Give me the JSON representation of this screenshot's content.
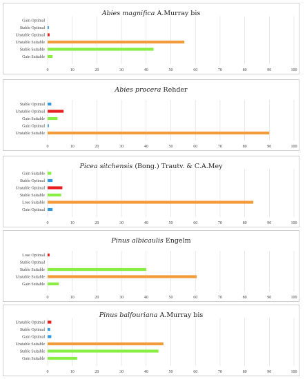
{
  "chart_data": [
    {
      "type": "bar",
      "orientation": "horizontal",
      "title_italic": "Abies magnifica",
      "title_rest": " A.Murray bis",
      "categories": [
        "Gain Optimal",
        "Stable Optimal",
        "Unstable Optimal",
        "Unstable Suitable",
        "Stable Suitable",
        "Gain Suitable"
      ],
      "values": [
        0,
        0.5,
        0.8,
        55.5,
        43,
        2
      ],
      "colors": [
        "#3399dd",
        "#3399dd",
        "#e62020",
        "#f39a3a",
        "#88ee44",
        "#88ee44"
      ],
      "xlim": [
        0,
        100
      ],
      "xticks": [
        "0",
        "10",
        "20",
        "30",
        "40",
        "50",
        "60",
        "70",
        "80",
        "90",
        "100"
      ],
      "grid": true
    },
    {
      "type": "bar",
      "orientation": "horizontal",
      "title_italic": "Abies procera",
      "title_rest": " Rehder",
      "categories": [
        "Stable Optimal",
        "Unstable Optimal",
        "Gain Suitable",
        "Gain Optimal",
        "Unstable Suitable"
      ],
      "values": [
        1.5,
        6.5,
        4,
        0.5,
        90
      ],
      "colors": [
        "#3399dd",
        "#e62020",
        "#88ee44",
        "#3399dd",
        "#f39a3a"
      ],
      "xlim": [
        0,
        100
      ],
      "xticks": [
        "0",
        "10",
        "20",
        "30",
        "40",
        "50",
        "60",
        "70",
        "80",
        "90",
        "100"
      ],
      "grid": true
    },
    {
      "type": "bar",
      "orientation": "horizontal",
      "title_italic": "Picea sitchensis",
      "title_rest": " (Bong.) Trautv. & C.A.Mey",
      "categories": [
        "Gain Suitable",
        "Stable Optimal",
        "Unstable Optimal",
        "Stable Suitable",
        "Lose Suitable",
        "Gain Optimal"
      ],
      "values": [
        1.5,
        2,
        6,
        5.5,
        83.5,
        2
      ],
      "colors": [
        "#88ee44",
        "#3399dd",
        "#e62020",
        "#88ee44",
        "#f39a3a",
        "#3399dd"
      ],
      "xlim": [
        0,
        100
      ],
      "xticks": [
        "0",
        "10",
        "20",
        "30",
        "40",
        "50",
        "60",
        "70",
        "80",
        "90",
        "100"
      ],
      "grid": true
    },
    {
      "type": "bar",
      "orientation": "horizontal",
      "title_italic": "Pinus albicaulis",
      "title_rest": " Engelm",
      "categories": [
        "Lose Optimal",
        "Stable Optimal",
        "Stable Suitable",
        "Unstable Suitable",
        "Gain Suitable"
      ],
      "values": [
        0.8,
        0,
        40,
        60.5,
        4.5
      ],
      "colors": [
        "#e62020",
        "#3399dd",
        "#88ee44",
        "#f39a3a",
        "#88ee44"
      ],
      "xlim": [
        0,
        100
      ],
      "xticks": [
        "0",
        "10",
        "20",
        "30",
        "40",
        "50",
        "60",
        "70",
        "80",
        "90",
        "100"
      ],
      "grid": true
    },
    {
      "type": "bar",
      "orientation": "horizontal",
      "title_italic": "Pinus balfouriana",
      "title_rest": " A.Murray bis",
      "categories": [
        "Unstable Optimal",
        "Stable Optimal",
        "Gain Optimal",
        "Unstable Suitable",
        "Stable Suitable",
        "Gain Suitable"
      ],
      "values": [
        1.5,
        1,
        1.5,
        47,
        45,
        12
      ],
      "colors": [
        "#e62020",
        "#3399dd",
        "#3399dd",
        "#f39a3a",
        "#88ee44",
        "#88ee44"
      ],
      "xlim": [
        0,
        100
      ],
      "xticks": [
        "0",
        "10",
        "20",
        "30",
        "40",
        "50",
        "60",
        "70",
        "80",
        "90",
        "100"
      ],
      "grid": true
    }
  ]
}
